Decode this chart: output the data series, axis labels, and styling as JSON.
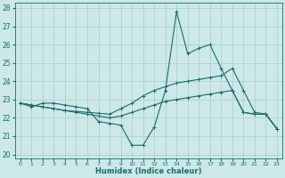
{
  "xlabel": "Humidex (Indice chaleur)",
  "xlim": [
    -0.5,
    23.5
  ],
  "ylim": [
    19.8,
    28.3
  ],
  "xticks": [
    0,
    1,
    2,
    3,
    4,
    5,
    6,
    7,
    8,
    9,
    10,
    11,
    12,
    13,
    14,
    15,
    16,
    17,
    18,
    19,
    20,
    21,
    22,
    23
  ],
  "yticks": [
    20,
    21,
    22,
    23,
    24,
    25,
    26,
    27,
    28
  ],
  "bg_color": "#cce8e8",
  "grid_color": "#aacccc",
  "line_color": "#1a6b6b",
  "series": [
    {
      "x": [
        0,
        1,
        2,
        3,
        4,
        5,
        6,
        7,
        8,
        9,
        10,
        11,
        12,
        13,
        14,
        15,
        16,
        17,
        18,
        19,
        20,
        21,
        22,
        23
      ],
      "y": [
        22.8,
        22.6,
        22.8,
        22.8,
        22.7,
        22.6,
        22.5,
        21.8,
        21.7,
        21.6,
        20.5,
        20.5,
        21.5,
        23.5,
        27.8,
        25.5,
        25.8,
        26.0,
        24.7,
        23.5,
        22.3,
        22.2,
        22.2,
        21.4
      ]
    },
    {
      "x": [
        0,
        1,
        2,
        3,
        4,
        5,
        6,
        7,
        8,
        9,
        10,
        11,
        12,
        13,
        14,
        15,
        16,
        17,
        18,
        19,
        20,
        21,
        22,
        23
      ],
      "y": [
        22.8,
        22.7,
        22.6,
        22.5,
        22.4,
        22.35,
        22.3,
        22.25,
        22.2,
        22.5,
        22.8,
        23.2,
        23.5,
        23.7,
        23.9,
        24.0,
        24.1,
        24.2,
        24.3,
        24.7,
        23.5,
        22.3,
        22.2,
        21.4
      ]
    },
    {
      "x": [
        0,
        1,
        2,
        3,
        4,
        5,
        6,
        7,
        8,
        9,
        10,
        11,
        12,
        13,
        14,
        15,
        16,
        17,
        18,
        19,
        20,
        21,
        22,
        23
      ],
      "y": [
        22.8,
        22.7,
        22.6,
        22.5,
        22.4,
        22.3,
        22.2,
        22.1,
        22.0,
        22.1,
        22.3,
        22.5,
        22.7,
        22.9,
        23.0,
        23.1,
        23.2,
        23.3,
        23.4,
        23.5,
        22.3,
        22.2,
        22.2,
        21.4
      ]
    }
  ]
}
